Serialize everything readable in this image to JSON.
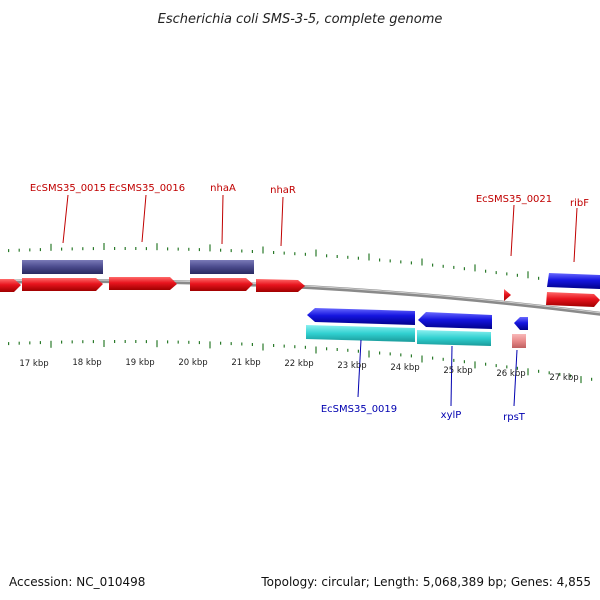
{
  "title": "Escherichia coli SMS-3-5, complete genome",
  "footer": {
    "accession": "Accession: NC_010498",
    "summary": "Topology: circular; Length: 5,068,389 bp; Genes: 4,855"
  },
  "colors": {
    "forward_cds": "#e8141e",
    "reverse_cds": "#1515e0",
    "forward_gene": "#4a4a8c",
    "reverse_gene": "#30d0d0",
    "rna": "#e88a8a",
    "label_forward": "#c00000",
    "label_reverse": "#0000b0",
    "tick": "#2a7a2a",
    "backbone": "#888888"
  },
  "kbp_labels": [
    "17 kbp",
    "18 kbp",
    "19 kbp",
    "20 kbp",
    "21 kbp",
    "22 kbp",
    "23 kbp",
    "24 kbp",
    "25 kbp",
    "26 kbp",
    "27 kbp"
  ],
  "gene_labels": {
    "forward": [
      "EcSMS35_0015",
      "EcSMS35_0016",
      "nhaA",
      "nhaR",
      "EcSMS35_0021",
      "ribF"
    ],
    "reverse": [
      "EcSMS35_0019",
      "xylP",
      "rpsT"
    ]
  }
}
